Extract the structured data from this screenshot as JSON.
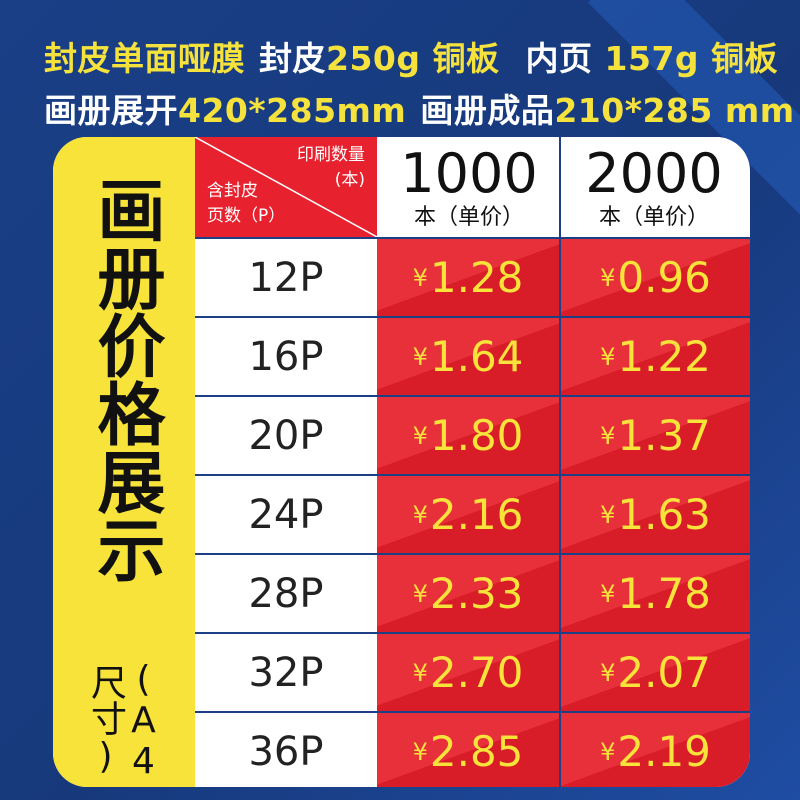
{
  "header": {
    "line1": [
      {
        "text": "封皮单面哑膜",
        "color": "yellow"
      },
      {
        "text": "封皮",
        "color": "white"
      },
      {
        "text": "250g",
        "color": "yellow"
      },
      {
        "text": "铜板",
        "color": "yellow"
      },
      {
        "text": "内页",
        "color": "white"
      },
      {
        "text": "157g",
        "color": "yellow"
      },
      {
        "text": "铜板",
        "color": "yellow"
      }
    ],
    "line2": [
      {
        "text": "画册展开",
        "color": "white"
      },
      {
        "text": "420*285mm",
        "color": "yellow"
      },
      {
        "text": "画册成品",
        "color": "white"
      },
      {
        "text": "210*285 mm",
        "color": "yellow"
      }
    ]
  },
  "side": {
    "title": "画册价格展示",
    "subtitle": "(A4尺寸)"
  },
  "table": {
    "corner_top_line1": "印刷数量",
    "corner_top_line2": "(本)",
    "corner_bottom_line1": "含封皮",
    "corner_bottom_line2": "页数（P）",
    "columns": [
      {
        "quantity": "1000",
        "unit": "本（单价）"
      },
      {
        "quantity": "2000",
        "unit": "本（单价）"
      }
    ],
    "currency": "¥",
    "rows": [
      {
        "pages": "12P",
        "price_1000": "1.28",
        "price_2000": "0.96"
      },
      {
        "pages": "16P",
        "price_1000": "1.64",
        "price_2000": "1.22"
      },
      {
        "pages": "20P",
        "price_1000": "1.80",
        "price_2000": "1.37"
      },
      {
        "pages": "24P",
        "price_1000": "2.16",
        "price_2000": "1.63"
      },
      {
        "pages": "28P",
        "price_1000": "2.33",
        "price_2000": "1.78"
      },
      {
        "pages": "32P",
        "price_1000": "2.70",
        "price_2000": "2.07"
      },
      {
        "pages": "36P",
        "price_1000": "2.85",
        "price_2000": "2.19"
      }
    ]
  },
  "colors": {
    "background": "#17397c",
    "accent_yellow": "#f8e33a",
    "price_red": "#e8212e",
    "header_yellow": "#f5e23c"
  }
}
